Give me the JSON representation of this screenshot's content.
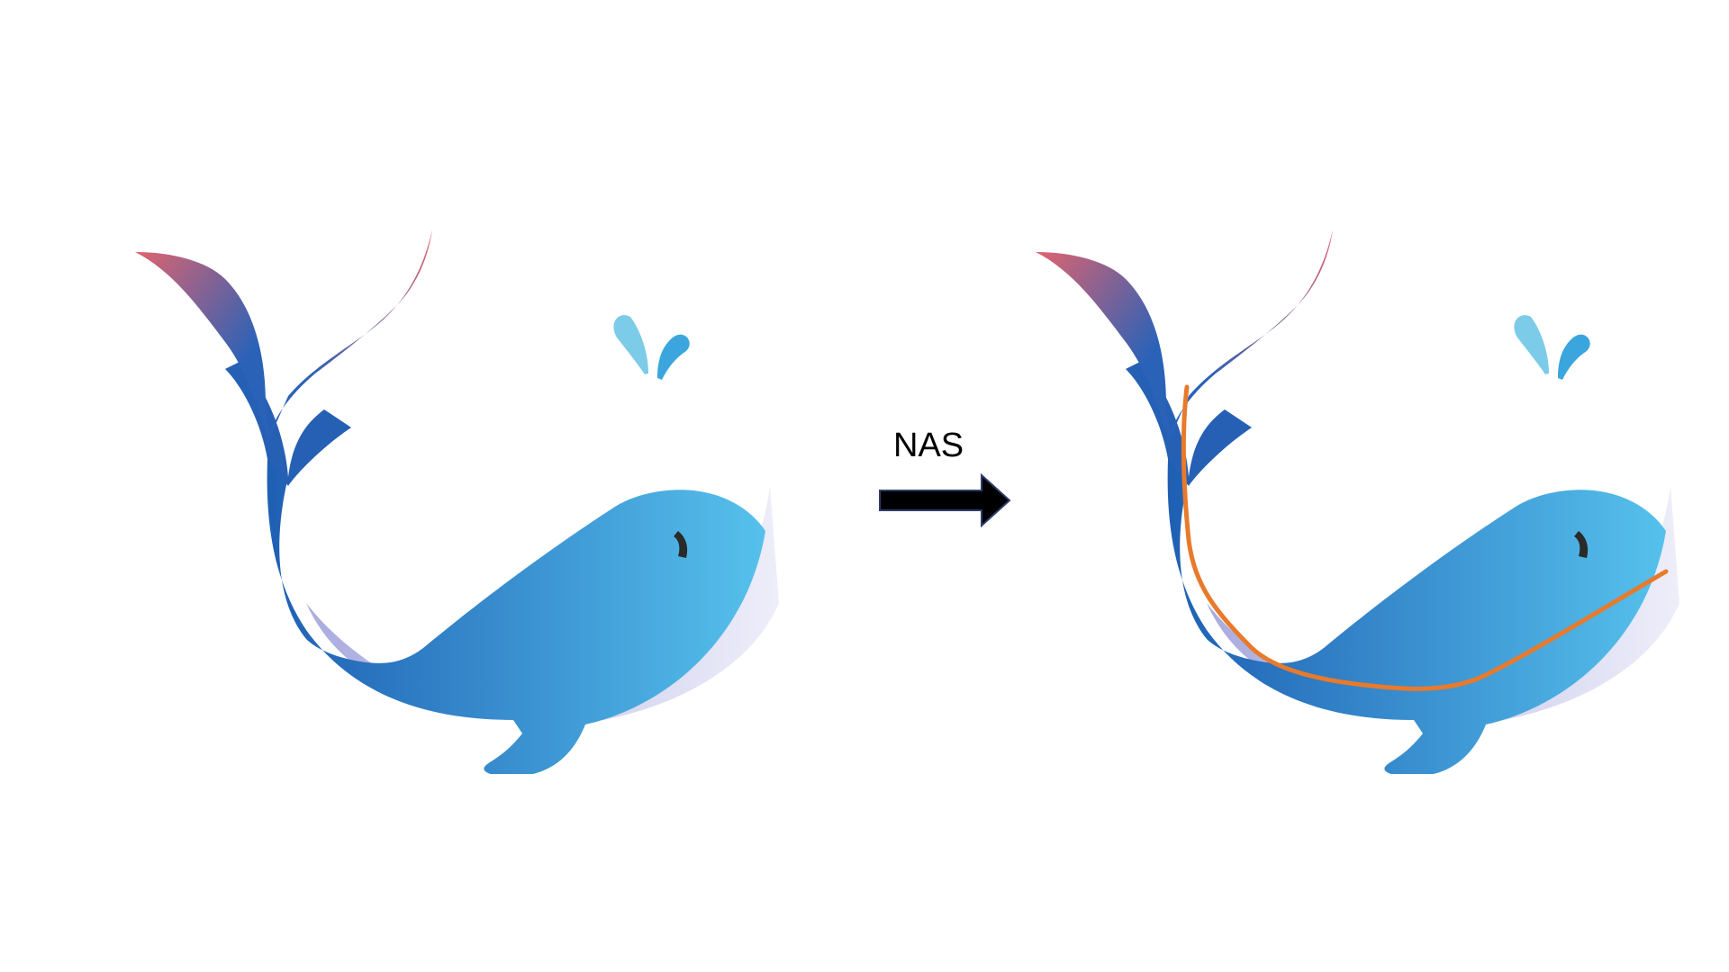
{
  "diagram": {
    "label": "NAS",
    "colors": {
      "whale_body_dark": "#1e5fb3",
      "whale_body_light": "#56c1ec",
      "tail_tip": "#e0636e",
      "shadow": "#b3b5e0",
      "eye": "#2a2a2a",
      "water_drop_light": "#7ccbe8",
      "water_drop_dark": "#3aa6dd",
      "path_highlight": "#e87a2c",
      "arrow_fill": "#000000",
      "arrow_stroke": "#2f3d6b"
    },
    "icons": {
      "left": "whale-icon",
      "arrow": "right-arrow-icon",
      "right": "whale-with-path-icon"
    }
  }
}
